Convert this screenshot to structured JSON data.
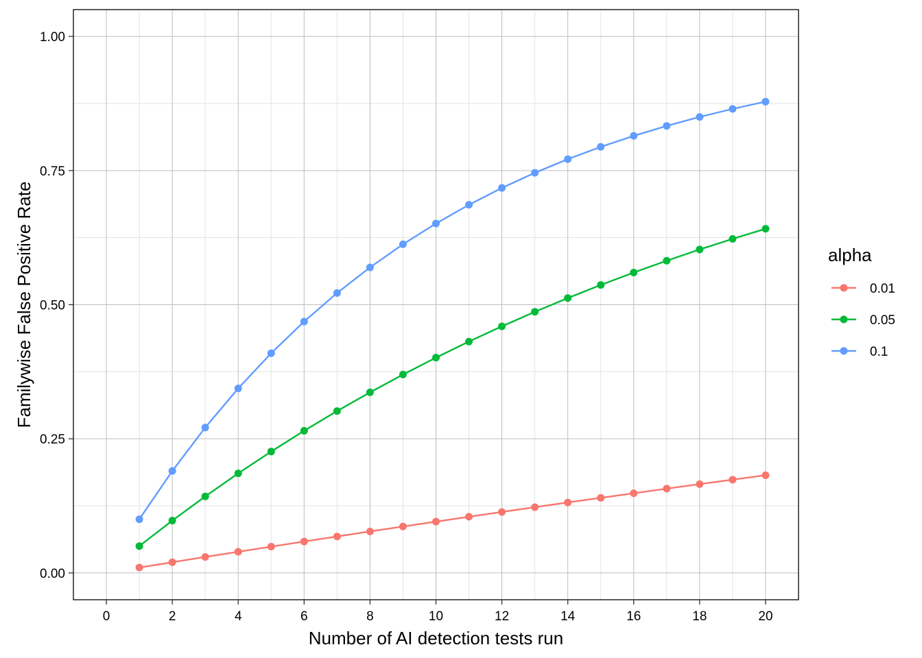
{
  "chart_data": {
    "type": "line",
    "title": "",
    "xlabel": "Number of AI detection tests run",
    "ylabel": "Familywise False Positive Rate",
    "xlim": [
      -1,
      21
    ],
    "ylim": [
      -0.05,
      1.05
    ],
    "x_ticks": [
      0,
      2,
      4,
      6,
      8,
      10,
      12,
      14,
      16,
      18,
      20
    ],
    "y_ticks": [
      0.0,
      0.25,
      0.5,
      0.75,
      1.0
    ],
    "y_tick_labels": [
      "0.00",
      "0.25",
      "0.50",
      "0.75",
      "1.00"
    ],
    "grid": true,
    "legend": {
      "title": "alpha",
      "position": "right"
    },
    "x": [
      1,
      2,
      3,
      4,
      5,
      6,
      7,
      8,
      9,
      10,
      11,
      12,
      13,
      14,
      15,
      16,
      17,
      18,
      19,
      20
    ],
    "series": [
      {
        "name": "0.01",
        "color": "#F8766D",
        "values": [
          0.01,
          0.0199,
          0.0297,
          0.0394,
          0.049,
          0.0585,
          0.0679,
          0.0773,
          0.0865,
          0.0956,
          0.1047,
          0.1136,
          0.1225,
          0.1313,
          0.1399,
          0.1485,
          0.1571,
          0.1655,
          0.1738,
          0.1821
        ]
      },
      {
        "name": "0.05",
        "color": "#00BA38",
        "values": [
          0.05,
          0.0975,
          0.1426,
          0.1855,
          0.2262,
          0.2649,
          0.3017,
          0.3366,
          0.3698,
          0.4013,
          0.4312,
          0.4596,
          0.4867,
          0.5123,
          0.5367,
          0.5599,
          0.5819,
          0.6028,
          0.6226,
          0.6415
        ]
      },
      {
        "name": "0.1",
        "color": "#619CFF",
        "values": [
          0.1,
          0.19,
          0.271,
          0.3439,
          0.4095,
          0.4686,
          0.5217,
          0.5695,
          0.6126,
          0.6513,
          0.6862,
          0.7176,
          0.7458,
          0.7712,
          0.7941,
          0.8147,
          0.8332,
          0.8499,
          0.8649,
          0.8784
        ]
      }
    ]
  }
}
